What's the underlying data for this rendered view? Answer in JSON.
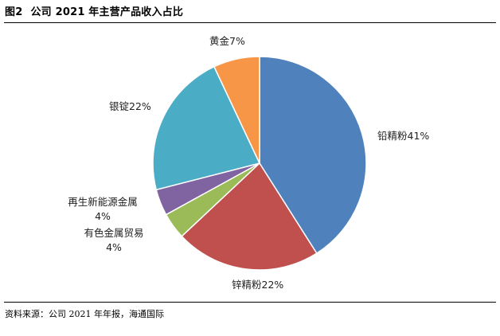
{
  "figure": {
    "number": "图2",
    "title": "公司 2021 年主营产品收入占比",
    "source": "资料来源：公司 2021 年年报，海通国际"
  },
  "chart_data": {
    "type": "pie",
    "title": "",
    "start_angle_deg": 0,
    "direction": "clockwise",
    "slices": [
      {
        "label": "铅精粉41%",
        "name": "铅精粉",
        "value": 41,
        "color": "#4F81BD"
      },
      {
        "label": "锌精粉22%",
        "name": "锌精粉",
        "value": 22,
        "color": "#C0504D"
      },
      {
        "label": "有色金属贸易",
        "label2": "4%",
        "name": "有色金属贸易",
        "value": 4,
        "color": "#9BBB59"
      },
      {
        "label": "再生新能源金属",
        "label2": "4%",
        "name": "再生新能源金属",
        "value": 4,
        "color": "#8064A2"
      },
      {
        "label": "银锭22%",
        "name": "银锭",
        "value": 22,
        "color": "#4BACC6"
      },
      {
        "label": "黄金7%",
        "name": "黄金",
        "value": 7,
        "color": "#F79646"
      }
    ]
  }
}
